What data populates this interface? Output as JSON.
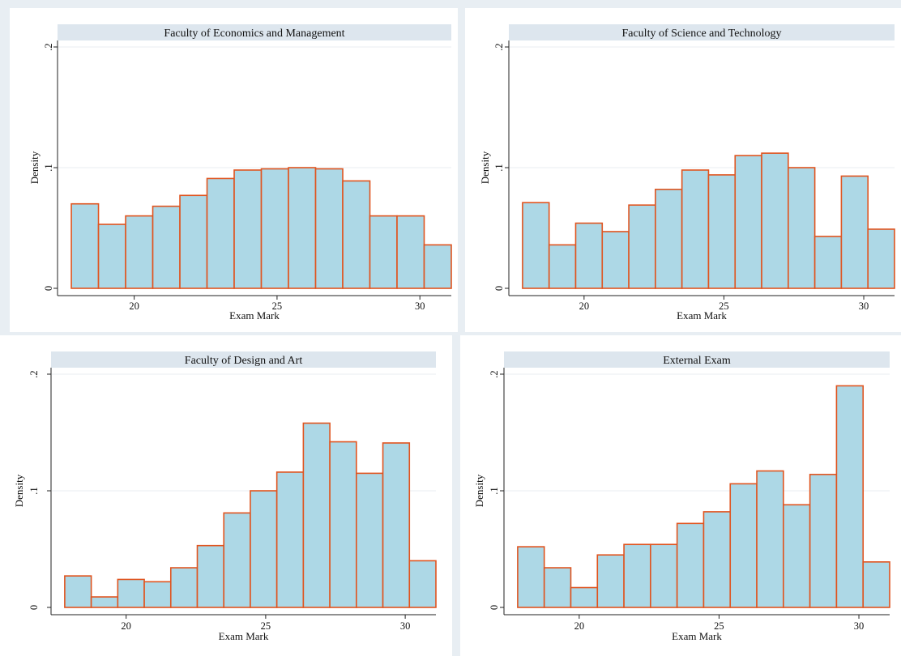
{
  "figure": {
    "xlabel": "Exam Mark",
    "ylabel": "Density"
  },
  "colors": {
    "bar_fill": "#add8e6",
    "bar_edge": "#e0541f",
    "title_band": "#dde6ee",
    "grid": "#e8eef2",
    "background": "#e8eef3"
  },
  "chart_data": [
    {
      "type": "bar",
      "title": "Faculty of Economics and Management",
      "xlabel": "Exam Mark",
      "ylabel": "Density",
      "bins_start": 17.8,
      "bin_width": 0.95,
      "values": [
        0.07,
        0.053,
        0.06,
        0.068,
        0.077,
        0.091,
        0.098,
        0.099,
        0.1,
        0.099,
        0.089,
        0.06,
        0.06,
        0.036
      ],
      "xticks": [
        20,
        25,
        30
      ],
      "yticks": [
        0,
        0.1,
        0.2
      ],
      "ytick_labels": [
        "0",
        ".1",
        ".2"
      ],
      "xlim": [
        17.6,
        31.1
      ],
      "ylim": [
        0,
        0.2
      ],
      "grid": true
    },
    {
      "type": "bar",
      "title": "Faculty of Science and Technology",
      "xlabel": "Exam Mark",
      "ylabel": "Density",
      "bins_start": 17.8,
      "bin_width": 0.95,
      "values": [
        0.071,
        0.036,
        0.054,
        0.047,
        0.069,
        0.082,
        0.098,
        0.094,
        0.11,
        0.112,
        0.1,
        0.043,
        0.093,
        0.049
      ],
      "xticks": [
        20,
        25,
        30
      ],
      "yticks": [
        0,
        0.1,
        0.2
      ],
      "ytick_labels": [
        "0",
        ".1",
        ".2"
      ],
      "xlim": [
        17.6,
        31.1
      ],
      "ylim": [
        0,
        0.2
      ],
      "grid": true
    },
    {
      "type": "bar",
      "title": "Faculty of Design and Art",
      "xlabel": "Exam Mark",
      "ylabel": "Density",
      "bins_start": 17.8,
      "bin_width": 0.95,
      "values": [
        0.027,
        0.009,
        0.024,
        0.022,
        0.034,
        0.053,
        0.081,
        0.1,
        0.116,
        0.158,
        0.142,
        0.115,
        0.141,
        0.04
      ],
      "xticks": [
        20,
        25,
        30
      ],
      "yticks": [
        0,
        0.1,
        0.2
      ],
      "ytick_labels": [
        "0",
        ".1",
        ".2"
      ],
      "xlim": [
        17.6,
        31.1
      ],
      "ylim": [
        0,
        0.2
      ],
      "grid": true
    },
    {
      "type": "bar",
      "title": "External Exam",
      "xlabel": "Exam Mark",
      "ylabel": "Density",
      "bins_start": 17.8,
      "bin_width": 0.95,
      "values": [
        0.052,
        0.034,
        0.017,
        0.045,
        0.054,
        0.054,
        0.072,
        0.082,
        0.106,
        0.117,
        0.088,
        0.114,
        0.19,
        0.039
      ],
      "xticks": [
        20,
        25,
        30
      ],
      "yticks": [
        0,
        0.1,
        0.2
      ],
      "ytick_labels": [
        "0",
        ".1",
        ".2"
      ],
      "xlim": [
        17.6,
        31.1
      ],
      "ylim": [
        0,
        0.2
      ],
      "grid": true
    }
  ]
}
